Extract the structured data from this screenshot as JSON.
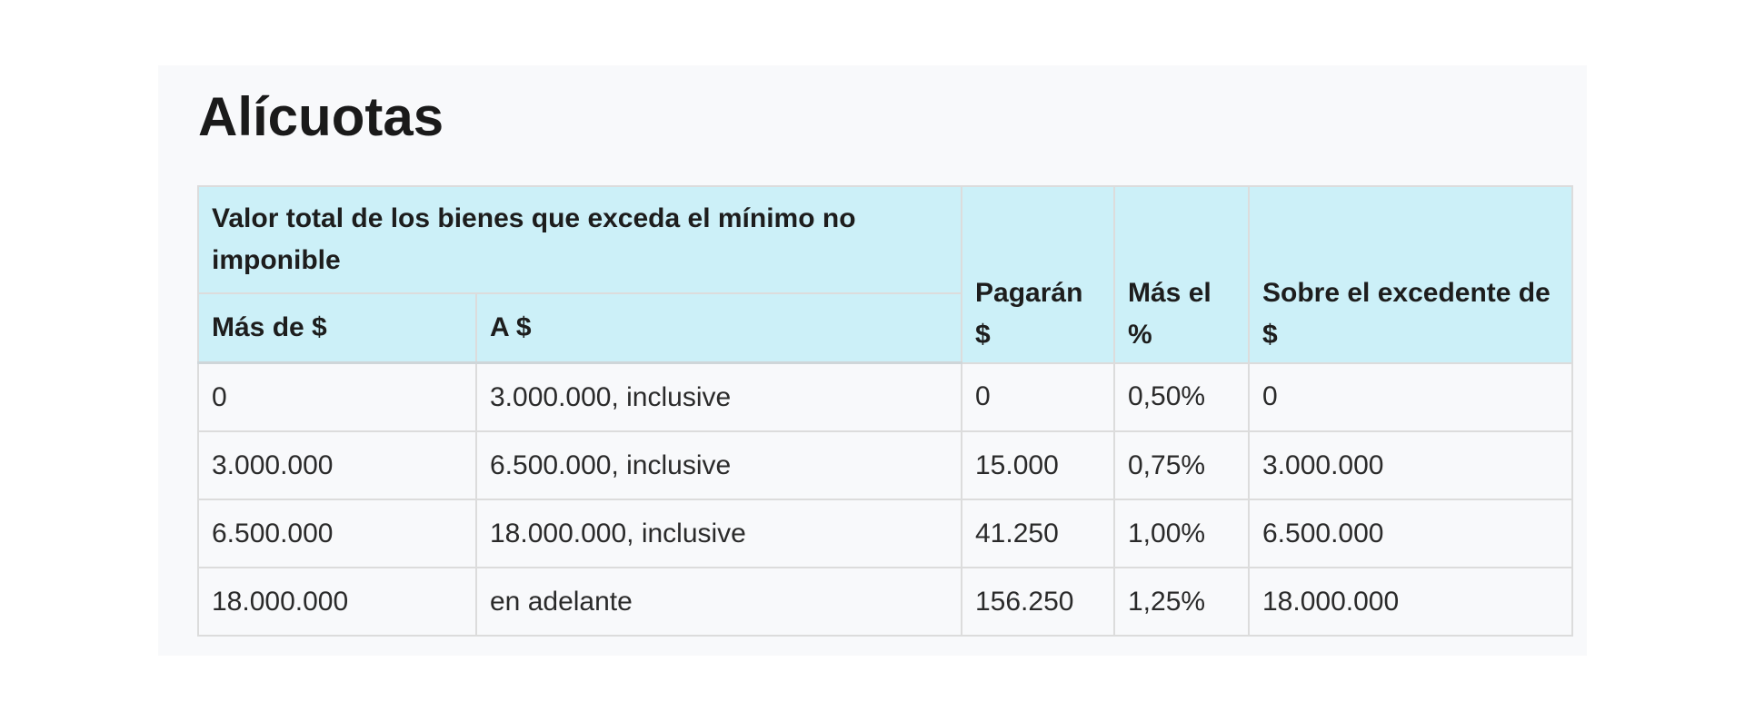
{
  "page": {
    "title": "Alícuotas"
  },
  "table": {
    "group_header": "Valor total de los bienes que exceda el mínimo no imponible",
    "columns": {
      "from": "Más de $",
      "to": "A $",
      "pay": "Pagarán $",
      "plus_pct": "Más el %",
      "over_excess": "Sobre el excedente de $"
    },
    "rows": [
      {
        "from": "0",
        "to": "3.000.000, inclusive",
        "pay": "0",
        "plus_pct": "0,50%",
        "over_excess": "0"
      },
      {
        "from": "3.000.000",
        "to": "6.500.000, inclusive",
        "pay": "15.000",
        "plus_pct": "0,75%",
        "over_excess": "3.000.000"
      },
      {
        "from": "6.500.000",
        "to": "18.000.000, inclusive",
        "pay": "41.250",
        "plus_pct": "1,00%",
        "over_excess": "6.500.000"
      },
      {
        "from": "18.000.000",
        "to": "en adelante",
        "pay": "156.250",
        "plus_pct": "1,25%",
        "over_excess": "18.000.000"
      }
    ]
  }
}
